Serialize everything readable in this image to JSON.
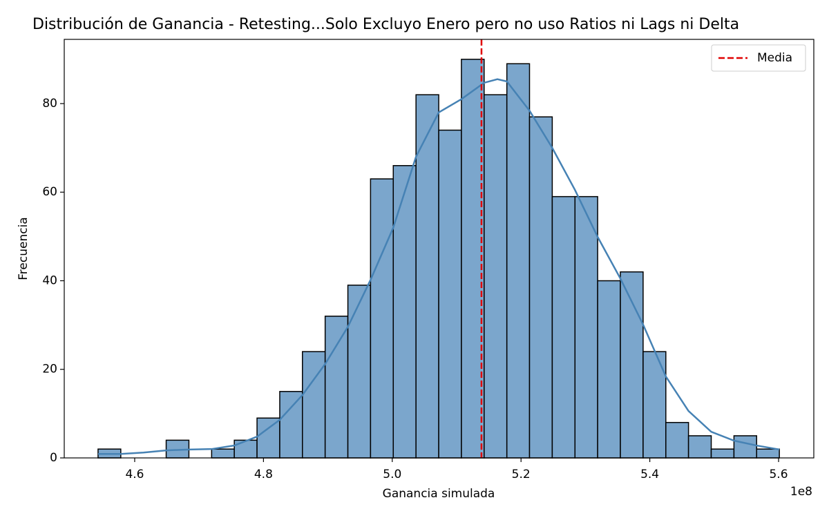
{
  "chart_data": {
    "type": "histogram",
    "title": "Distribución de Ganancia - Retesting...Solo Excluyo Enero pero no uso Ratios ni Lags ni Delta",
    "x_label": "Ganancia simulada",
    "y_label": "Frecuencia",
    "x_offset_label": "1e8",
    "bins": [
      4.5431,
      4.5784,
      4.6136,
      4.6489,
      4.6842,
      4.7195,
      4.7547,
      4.79,
      4.8253,
      4.8605,
      4.8958,
      4.9311,
      4.9663,
      5.0016,
      5.0369,
      5.0722,
      5.1074,
      5.1427,
      5.178,
      5.2132,
      5.2485,
      5.2838,
      5.319,
      5.3543,
      5.3896,
      5.4249,
      5.4601,
      5.4954,
      5.5307,
      5.5659,
      5.6012
    ],
    "values": [
      2,
      0,
      0,
      4,
      0,
      2,
      4,
      9,
      15,
      24,
      32,
      39,
      63,
      66,
      82,
      74,
      90,
      82,
      89,
      77,
      59,
      59,
      40,
      42,
      24,
      8,
      5,
      2,
      5,
      2
    ],
    "color": "#7ba6cc",
    "edge_color": "#000000",
    "kde": {
      "color": "#4682b4",
      "x": [
        4.5431,
        4.5784,
        4.6136,
        4.6489,
        4.6842,
        4.7195,
        4.7547,
        4.79,
        4.8253,
        4.8605,
        4.8958,
        4.9311,
        4.9663,
        5.0016,
        5.0369,
        5.0722,
        5.1074,
        5.1427,
        5.1633,
        5.178,
        5.2132,
        5.2485,
        5.2838,
        5.319,
        5.3543,
        5.3896,
        5.4249,
        5.4601,
        5.4954,
        5.5307,
        5.5659,
        5.6012
      ],
      "values": [
        0.9,
        0.9,
        1.2,
        1.7,
        1.9,
        2.0,
        2.8,
        4.8,
        8.6,
        14.2,
        21.2,
        29.6,
        40.2,
        52,
        68,
        78,
        81,
        84.7,
        85.5,
        85,
        78.4,
        70,
        60.5,
        49.9,
        40.5,
        30.1,
        18.4,
        10.6,
        5.9,
        3.9,
        2.8,
        1.9
      ]
    },
    "mean": {
      "name": "Media",
      "value": 5.1386,
      "color": "#e00000"
    },
    "legend": "upper right",
    "xlim": [
      4.4906,
      5.6547
    ],
    "ylim": [
      0,
      94.5
    ],
    "xticks": [
      4.6,
      4.8,
      {
        "value": 5.0,
        "label": "5.0"
      },
      5.2,
      5.4,
      5.6
    ],
    "yticks": [
      0,
      20,
      40,
      60,
      80
    ]
  }
}
